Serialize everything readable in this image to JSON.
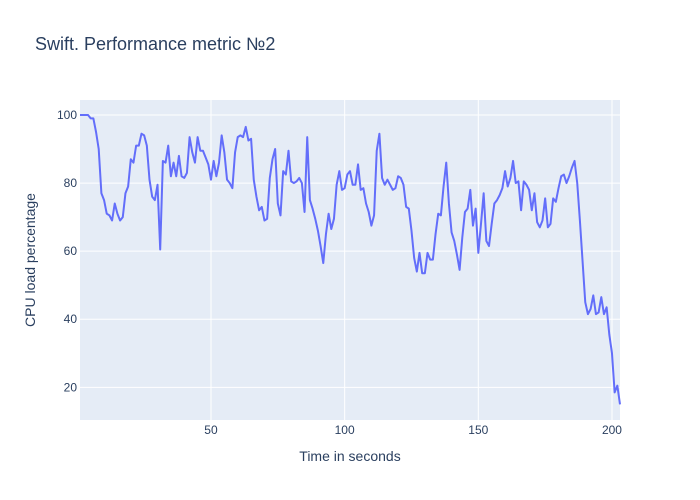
{
  "colors": {
    "plot_background": "#e5ecf6",
    "grid": "#ffffff",
    "line": "#636efa",
    "title": "#2a3f5f",
    "ticks": "#2a3f5f"
  },
  "chart_data": {
    "type": "line",
    "title": "Swift. Performance metric №2",
    "xlabel": "Time in seconds",
    "ylabel": "CPU load percentage",
    "xlim": [
      1,
      203
    ],
    "ylim": [
      10.4,
      104.4
    ],
    "x_ticks": [
      50,
      100,
      150,
      200
    ],
    "y_ticks": [
      20,
      40,
      60,
      80,
      100
    ],
    "grid": true,
    "legend": "none",
    "series": [
      {
        "x": [
          1,
          2,
          3,
          4,
          5,
          6,
          7,
          8,
          9,
          10,
          11,
          12,
          13,
          14,
          15,
          16,
          17,
          18,
          19,
          20,
          21,
          22,
          23,
          24,
          25,
          26,
          27,
          28,
          29,
          30,
          31,
          32,
          33,
          34,
          35,
          36,
          37,
          38,
          39,
          40,
          41,
          42,
          43,
          44,
          45,
          46,
          47,
          48,
          49,
          50,
          51,
          52,
          53,
          54,
          55,
          56,
          57,
          58,
          59,
          60,
          61,
          62,
          63,
          64,
          65,
          66,
          67,
          68,
          69,
          70,
          71,
          72,
          73,
          74,
          75,
          76,
          77,
          78,
          79,
          80,
          81,
          82,
          83,
          84,
          85,
          86,
          87,
          88,
          89,
          90,
          91,
          92,
          93,
          94,
          95,
          96,
          97,
          98,
          99,
          100,
          101,
          102,
          103,
          104,
          105,
          106,
          107,
          108,
          109,
          110,
          111,
          112,
          113,
          114,
          115,
          116,
          117,
          118,
          119,
          120,
          121,
          122,
          123,
          124,
          125,
          126,
          127,
          128,
          129,
          130,
          131,
          132,
          133,
          134,
          135,
          136,
          137,
          138,
          139,
          140,
          141,
          142,
          143,
          144,
          145,
          146,
          147,
          148,
          149,
          150,
          151,
          152,
          153,
          154,
          155,
          156,
          157,
          158,
          159,
          160,
          161,
          162,
          163,
          164,
          165,
          166,
          167,
          168,
          169,
          170,
          171,
          172,
          173,
          174,
          175,
          176,
          177,
          178,
          179,
          180,
          181,
          182,
          183,
          184,
          185,
          186,
          187,
          188,
          189,
          190,
          191,
          192,
          193,
          194,
          195,
          196,
          197,
          198,
          199,
          200,
          201,
          202,
          203
        ],
        "y": [
          100,
          100,
          100,
          100,
          99,
          99,
          95,
          90,
          77,
          75,
          71,
          70.5,
          69,
          74,
          71,
          69,
          70,
          77,
          79,
          87,
          86,
          91,
          91,
          94.5,
          94,
          91,
          81,
          76,
          75,
          79.5,
          60.5,
          86.5,
          86,
          91,
          82,
          86,
          82,
          88,
          82,
          81.5,
          83,
          93.5,
          89,
          86,
          93.5,
          89.5,
          89.5,
          87.5,
          85.5,
          81,
          86.5,
          82,
          86,
          94,
          89,
          81,
          80,
          78.5,
          89,
          93.5,
          94,
          93.5,
          96.5,
          92.5,
          93,
          81,
          76,
          72,
          73,
          69,
          69.5,
          81.5,
          87,
          90,
          74,
          70.5,
          83.5,
          82.5,
          89.5,
          80.5,
          80,
          80.5,
          81.5,
          80,
          71.5,
          93.5,
          75,
          72.5,
          69.5,
          66,
          61.5,
          56.5,
          65,
          71,
          66.5,
          69.5,
          79.5,
          83.5,
          78,
          78.5,
          82.5,
          83.5,
          79.5,
          79.5,
          85.5,
          78,
          78.5,
          74,
          71.5,
          67.5,
          70.5,
          89.5,
          94.5,
          81.5,
          79.5,
          81,
          79.5,
          78,
          78.5,
          82,
          81.5,
          79.5,
          73,
          72.5,
          66,
          58,
          54,
          59.5,
          53.5,
          53.5,
          59.5,
          57.5,
          57.5,
          65,
          71,
          70.5,
          79,
          86,
          74,
          65.5,
          63,
          59,
          54.5,
          64,
          71.5,
          72.5,
          78,
          67.5,
          72.5,
          59.5,
          68,
          77,
          63,
          61.5,
          68,
          74,
          75,
          76.5,
          78.5,
          83.5,
          79,
          81.5,
          86.5,
          80,
          80.5,
          72,
          80.5,
          79.5,
          78,
          72,
          77,
          68.5,
          67,
          69,
          75.5,
          67,
          68,
          75.5,
          74.5,
          78.5,
          82,
          82.5,
          80,
          82,
          84.5,
          86.5,
          80,
          69,
          57,
          45,
          41.5,
          43,
          47,
          41.5,
          42,
          46.5,
          41.5,
          43.5,
          35.5,
          30,
          18.5,
          20.5,
          15
        ]
      }
    ]
  }
}
